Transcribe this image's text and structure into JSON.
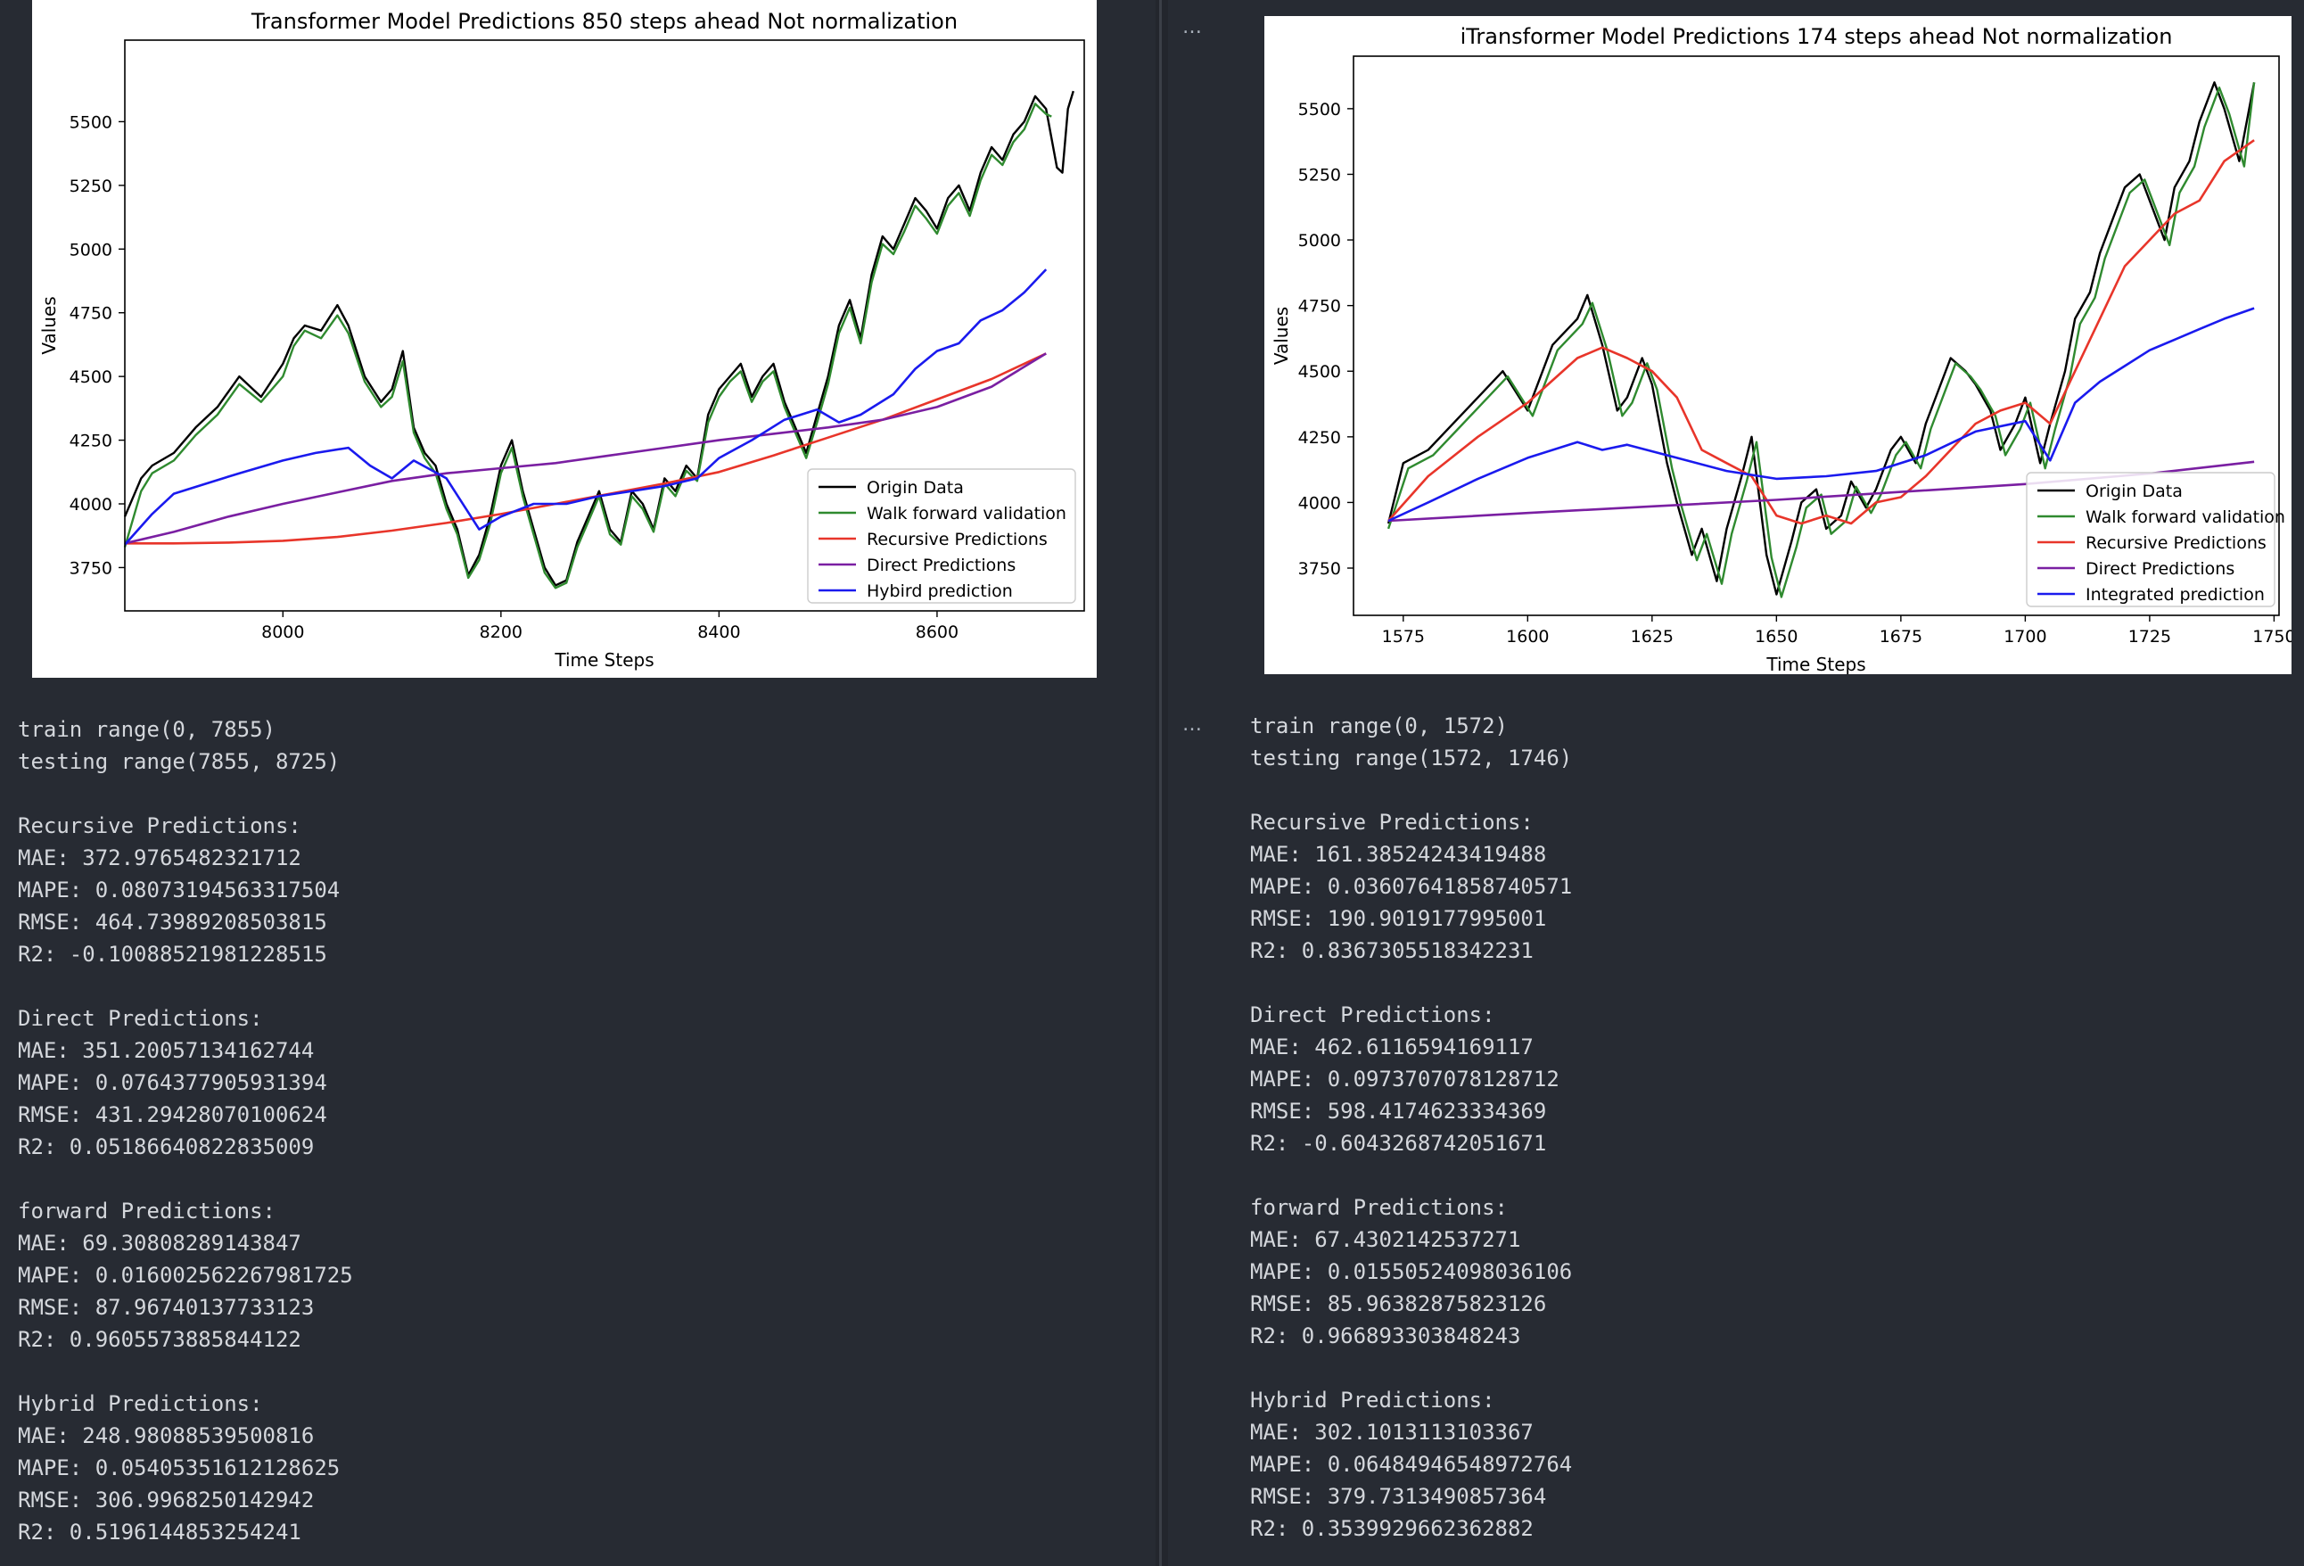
{
  "cells": {
    "left": {
      "output_lines": [
        "train range(0, 7855)",
        "testing range(7855, 8725)",
        "",
        "Recursive Predictions:",
        "MAE: 372.9765482321712",
        "MAPE: 0.08073194563317504",
        "RMSE: 464.73989208503815",
        "R2: -0.10088521981228515",
        "",
        "Direct Predictions:",
        "MAE: 351.20057134162744",
        "MAPE: 0.0764377905931394",
        "RMSE: 431.29428070100624",
        "R2: 0.05186640822835009",
        "",
        "forward Predictions:",
        "MAE: 69.30808289143847",
        "MAPE: 0.016002562267981725",
        "RMSE: 87.96740137733123",
        "R2: 0.9605573885844122",
        "",
        "Hybrid Predictions:",
        "MAE: 248.98088539500816",
        "MAPE: 0.05405351612128625",
        "RMSE: 306.9968250142942",
        "R2: 0.5196144853254241"
      ]
    },
    "right": {
      "ellipsis_top": "…",
      "ellipsis_output": "…",
      "output_lines": [
        "train range(0, 1572)",
        "testing range(1572, 1746)",
        "",
        "Recursive Predictions:",
        "MAE: 161.38524243419488",
        "MAPE: 0.03607641858740571",
        "RMSE: 190.9019177995001",
        "R2: 0.8367305518342231",
        "",
        "Direct Predictions:",
        "MAE: 462.6116594169117",
        "MAPE: 0.0973707078128712",
        "RMSE: 598.4174623334369",
        "R2: -0.6043268742051671",
        "",
        "forward Predictions:",
        "MAE: 67.4302142537271",
        "MAPE: 0.01550524098036106",
        "RMSE: 85.96382875823126",
        "R2: 0.966893303848243",
        "",
        "Hybrid Predictions:",
        "MAE: 302.1013113103367",
        "MAPE: 0.06484946548972764",
        "RMSE: 379.7313490857364",
        "R2: 0.3539929662362882"
      ]
    }
  },
  "chart_data": [
    {
      "type": "line",
      "title": "Transformer Model Predictions 850 steps ahead Not normalization",
      "xlabel": "Time Steps",
      "ylabel": "Values",
      "xlim": [
        7855,
        8735
      ],
      "ylim": [
        3580,
        5820
      ],
      "xticks": [
        8000,
        8200,
        8400,
        8600
      ],
      "yticks": [
        3750,
        4000,
        4250,
        4500,
        4750,
        5000,
        5250,
        5500
      ],
      "grid": false,
      "legend_position": "lower-right",
      "series": [
        {
          "name": "Origin Data",
          "color": "#000000",
          "x": [
            7855,
            7870,
            7880,
            7900,
            7920,
            7940,
            7960,
            7980,
            8000,
            8010,
            8020,
            8035,
            8050,
            8060,
            8075,
            8090,
            8100,
            8110,
            8120,
            8130,
            8140,
            8150,
            8160,
            8170,
            8180,
            8190,
            8200,
            8210,
            8220,
            8230,
            8240,
            8250,
            8260,
            8270,
            8280,
            8290,
            8300,
            8310,
            8320,
            8330,
            8340,
            8350,
            8360,
            8370,
            8380,
            8390,
            8400,
            8410,
            8420,
            8430,
            8440,
            8450,
            8460,
            8470,
            8480,
            8490,
            8500,
            8510,
            8520,
            8530,
            8540,
            8550,
            8560,
            8570,
            8580,
            8590,
            8600,
            8610,
            8620,
            8630,
            8640,
            8650,
            8660,
            8670,
            8680,
            8690,
            8700,
            8710,
            8715,
            8720,
            8725
          ],
          "values": [
            3950,
            4100,
            4150,
            4200,
            4300,
            4380,
            4500,
            4420,
            4550,
            4650,
            4700,
            4680,
            4780,
            4700,
            4500,
            4400,
            4450,
            4600,
            4300,
            4200,
            4150,
            4000,
            3900,
            3720,
            3800,
            3950,
            4150,
            4250,
            4050,
            3900,
            3750,
            3680,
            3700,
            3850,
            3950,
            4050,
            3900,
            3850,
            4050,
            4000,
            3900,
            4100,
            4050,
            4150,
            4100,
            4350,
            4450,
            4500,
            4550,
            4420,
            4500,
            4550,
            4400,
            4300,
            4200,
            4350,
            4500,
            4700,
            4800,
            4650,
            4900,
            5050,
            5000,
            5100,
            5200,
            5150,
            5080,
            5200,
            5250,
            5150,
            5300,
            5400,
            5350,
            5450,
            5500,
            5600,
            5550,
            5320,
            5300,
            5550,
            5620
          ]
        },
        {
          "name": "Walk forward validation",
          "color": "#2f8a2f",
          "x": [
            7855,
            7870,
            7880,
            7900,
            7920,
            7940,
            7960,
            7980,
            8000,
            8010,
            8020,
            8035,
            8050,
            8060,
            8075,
            8090,
            8100,
            8110,
            8120,
            8130,
            8140,
            8150,
            8160,
            8170,
            8180,
            8190,
            8200,
            8210,
            8220,
            8230,
            8240,
            8250,
            8260,
            8270,
            8280,
            8290,
            8300,
            8310,
            8320,
            8330,
            8340,
            8350,
            8360,
            8370,
            8380,
            8390,
            8400,
            8410,
            8420,
            8430,
            8440,
            8450,
            8460,
            8470,
            8480,
            8490,
            8500,
            8510,
            8520,
            8530,
            8540,
            8550,
            8560,
            8570,
            8580,
            8590,
            8600,
            8610,
            8620,
            8630,
            8640,
            8650,
            8660,
            8670,
            8680,
            8690,
            8700,
            8705
          ],
          "values": [
            3830,
            4050,
            4120,
            4170,
            4270,
            4350,
            4470,
            4400,
            4500,
            4620,
            4680,
            4650,
            4740,
            4670,
            4480,
            4380,
            4420,
            4560,
            4280,
            4180,
            4120,
            3980,
            3880,
            3710,
            3780,
            3920,
            4120,
            4220,
            4030,
            3880,
            3730,
            3670,
            3690,
            3830,
            3930,
            4030,
            3880,
            3840,
            4030,
            3980,
            3890,
            4080,
            4030,
            4130,
            4090,
            4320,
            4420,
            4480,
            4520,
            4400,
            4480,
            4520,
            4380,
            4280,
            4180,
            4320,
            4470,
            4670,
            4770,
            4630,
            4870,
            5020,
            4980,
            5070,
            5170,
            5120,
            5060,
            5170,
            5220,
            5130,
            5270,
            5370,
            5330,
            5420,
            5470,
            5570,
            5530,
            5520
          ]
        },
        {
          "name": "Recursive Predictions",
          "color": "#e8352a",
          "x": [
            7855,
            7900,
            7950,
            8000,
            8050,
            8100,
            8150,
            8200,
            8250,
            8300,
            8350,
            8400,
            8450,
            8500,
            8550,
            8600,
            8650,
            8700
          ],
          "values": [
            3845,
            3845,
            3848,
            3855,
            3870,
            3895,
            3925,
            3960,
            4000,
            4040,
            4080,
            4125,
            4190,
            4260,
            4330,
            4410,
            4490,
            4590
          ]
        },
        {
          "name": "Direct Predictions",
          "color": "#7a1fa2",
          "x": [
            7855,
            7900,
            7950,
            8000,
            8050,
            8100,
            8150,
            8200,
            8250,
            8300,
            8350,
            8400,
            8450,
            8500,
            8550,
            8600,
            8650,
            8700
          ],
          "values": [
            3845,
            3890,
            3950,
            4000,
            4045,
            4090,
            4120,
            4140,
            4160,
            4190,
            4220,
            4250,
            4275,
            4300,
            4330,
            4380,
            4460,
            4590
          ]
        },
        {
          "name": "Hybird prediction",
          "color": "#1a1aee",
          "x": [
            7855,
            7880,
            7900,
            7930,
            7960,
            8000,
            8030,
            8060,
            8080,
            8100,
            8120,
            8150,
            8180,
            8200,
            8230,
            8260,
            8290,
            8320,
            8350,
            8380,
            8400,
            8430,
            8460,
            8490,
            8510,
            8530,
            8560,
            8580,
            8600,
            8620,
            8640,
            8660,
            8680,
            8700
          ],
          "values": [
            3840,
            3960,
            4040,
            4080,
            4120,
            4170,
            4200,
            4220,
            4150,
            4100,
            4170,
            4100,
            3900,
            3950,
            4000,
            4000,
            4030,
            4050,
            4070,
            4100,
            4180,
            4250,
            4330,
            4370,
            4320,
            4350,
            4430,
            4530,
            4600,
            4630,
            4720,
            4760,
            4830,
            4920
          ]
        }
      ]
    },
    {
      "type": "line",
      "title": "iTransformer Model Predictions 174 steps ahead Not normalization",
      "xlabel": "Time Steps",
      "ylabel": "Values",
      "xlim": [
        1565,
        1751
      ],
      "ylim": [
        3570,
        5700
      ],
      "xticks": [
        1575,
        1600,
        1625,
        1650,
        1675,
        1700,
        1725,
        1750
      ],
      "yticks": [
        3750,
        4000,
        4250,
        4500,
        4750,
        5000,
        5250,
        5500
      ],
      "grid": false,
      "legend_position": "lower-right",
      "series": [
        {
          "name": "Origin Data",
          "color": "#000000",
          "x": [
            1572,
            1575,
            1580,
            1585,
            1590,
            1595,
            1600,
            1605,
            1610,
            1612,
            1615,
            1618,
            1620,
            1623,
            1625,
            1628,
            1630,
            1633,
            1635,
            1638,
            1640,
            1643,
            1645,
            1648,
            1650,
            1653,
            1655,
            1658,
            1660,
            1663,
            1665,
            1668,
            1670,
            1673,
            1675,
            1678,
            1680,
            1683,
            1685,
            1688,
            1690,
            1693,
            1695,
            1698,
            1700,
            1703,
            1705,
            1708,
            1710,
            1713,
            1715,
            1718,
            1720,
            1723,
            1725,
            1728,
            1730,
            1733,
            1735,
            1738,
            1740,
            1743,
            1746
          ],
          "values": [
            3920,
            4150,
            4200,
            4300,
            4400,
            4500,
            4350,
            4600,
            4700,
            4790,
            4600,
            4350,
            4400,
            4550,
            4450,
            4150,
            4000,
            3800,
            3900,
            3700,
            3900,
            4100,
            4250,
            3800,
            3650,
            3850,
            4000,
            4050,
            3900,
            3950,
            4080,
            3980,
            4050,
            4200,
            4250,
            4150,
            4300,
            4450,
            4550,
            4500,
            4450,
            4350,
            4200,
            4300,
            4400,
            4150,
            4300,
            4500,
            4700,
            4800,
            4950,
            5100,
            5200,
            5250,
            5150,
            5000,
            5200,
            5300,
            5450,
            5600,
            5500,
            5300,
            5600
          ]
        },
        {
          "name": "Walk forward validation",
          "color": "#2f8a2f",
          "x": [
            1572,
            1576,
            1581,
            1586,
            1591,
            1596,
            1601,
            1606,
            1611,
            1613,
            1616,
            1619,
            1621,
            1624,
            1626,
            1629,
            1631,
            1634,
            1636,
            1639,
            1641,
            1644,
            1646,
            1649,
            1651,
            1654,
            1656,
            1659,
            1661,
            1664,
            1666,
            1669,
            1671,
            1674,
            1676,
            1679,
            1681,
            1684,
            1686,
            1689,
            1691,
            1694,
            1696,
            1699,
            1701,
            1704,
            1706,
            1709,
            1711,
            1714,
            1716,
            1719,
            1721,
            1724,
            1726,
            1729,
            1731,
            1734,
            1736,
            1739,
            1741,
            1744,
            1746
          ],
          "values": [
            3900,
            4130,
            4180,
            4280,
            4380,
            4480,
            4330,
            4580,
            4680,
            4760,
            4580,
            4330,
            4380,
            4530,
            4430,
            4130,
            3980,
            3780,
            3880,
            3690,
            3880,
            4080,
            4230,
            3790,
            3640,
            3830,
            3980,
            4030,
            3880,
            3930,
            4060,
            3960,
            4030,
            4180,
            4230,
            4130,
            4280,
            4430,
            4530,
            4480,
            4430,
            4330,
            4180,
            4280,
            4380,
            4130,
            4280,
            4480,
            4680,
            4780,
            4930,
            5080,
            5180,
            5230,
            5130,
            4980,
            5180,
            5280,
            5430,
            5580,
            5480,
            5280,
            5600
          ]
        },
        {
          "name": "Recursive Predictions",
          "color": "#e8352a",
          "x": [
            1572,
            1580,
            1590,
            1600,
            1610,
            1615,
            1620,
            1625,
            1630,
            1635,
            1640,
            1645,
            1650,
            1655,
            1660,
            1665,
            1670,
            1675,
            1680,
            1685,
            1690,
            1695,
            1700,
            1705,
            1710,
            1715,
            1720,
            1725,
            1730,
            1735,
            1740,
            1746
          ],
          "values": [
            3930,
            4100,
            4250,
            4380,
            4550,
            4590,
            4550,
            4500,
            4400,
            4200,
            4150,
            4100,
            3950,
            3920,
            3950,
            3920,
            4000,
            4020,
            4100,
            4200,
            4300,
            4350,
            4380,
            4300,
            4500,
            4700,
            4900,
            5000,
            5100,
            5150,
            5300,
            5380
          ]
        },
        {
          "name": "Direct Predictions",
          "color": "#7a1fa2",
          "x": [
            1572,
            1600,
            1625,
            1650,
            1675,
            1700,
            1725,
            1746
          ],
          "values": [
            3930,
            3960,
            3985,
            4010,
            4040,
            4070,
            4110,
            4155
          ]
        },
        {
          "name": "Integrated prediction",
          "color": "#1a1aee",
          "x": [
            1572,
            1580,
            1590,
            1600,
            1610,
            1615,
            1620,
            1630,
            1640,
            1650,
            1660,
            1670,
            1680,
            1690,
            1700,
            1705,
            1710,
            1715,
            1720,
            1725,
            1730,
            1735,
            1740,
            1746
          ],
          "values": [
            3930,
            4000,
            4090,
            4170,
            4230,
            4200,
            4220,
            4170,
            4120,
            4090,
            4100,
            4120,
            4180,
            4270,
            4310,
            4160,
            4380,
            4460,
            4520,
            4580,
            4620,
            4660,
            4700,
            4740
          ]
        }
      ]
    }
  ]
}
